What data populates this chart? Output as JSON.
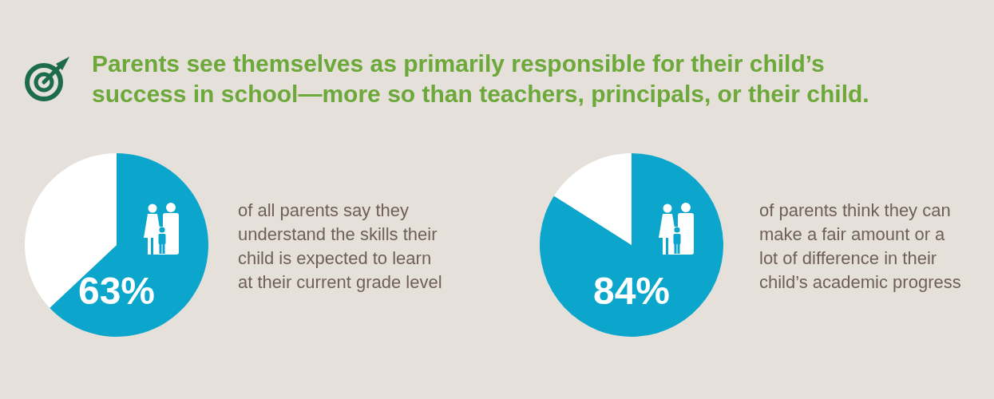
{
  "chart_data": [
    {
      "type": "pie",
      "title": "Parents see themselves as primarily responsible for their child’s\nsuccess in school—more so than teachers, principals, or their child.",
      "categories": [
        null,
        null
      ],
      "values": [
        63,
        37
      ],
      "colors": [
        "#0ca6cd",
        "#ffffff"
      ],
      "value_labels": [
        "63%",
        null
      ],
      "annotations": [
        "of all parents say they\nunderstand the skills their\nchild is expected to learn\nat their current grade level"
      ]
    },
    {
      "type": "pie",
      "categories": [
        null,
        null
      ],
      "values": [
        84,
        16
      ],
      "colors": [
        "#0ca6cd",
        "#ffffff"
      ],
      "value_labels": [
        "84%",
        null
      ],
      "annotations": [
        "of parents think they can\nmake a fair amount or a\nlot of difference in their\nchild’s academic progress"
      ]
    }
  ]
}
